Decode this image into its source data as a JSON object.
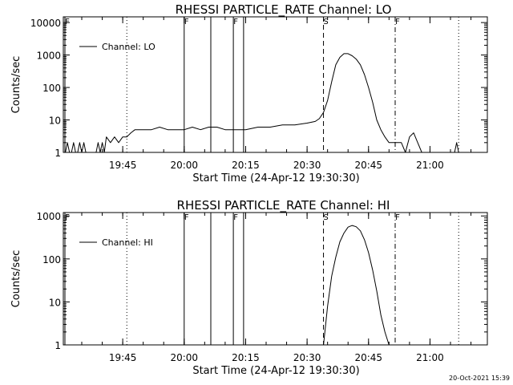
{
  "chart_data": [
    {
      "type": "line",
      "title": "RHESSI PARTICLE_RATE Channel: LO",
      "xlabel": "Start Time (24-Apr-12 19:30:30)",
      "ylabel": "Counts/sec",
      "y_scale": "log",
      "ylim": [
        1,
        15000
      ],
      "xlim": [
        "19:30:30",
        "21:14:00"
      ],
      "x_ticks": [
        "19:45",
        "20:00",
        "20:15",
        "20:30",
        "20:45",
        "21:00"
      ],
      "y_ticks": [
        "1",
        "10",
        "100",
        "1000",
        "10000"
      ],
      "legend": "Channel: LO",
      "legend_position": "top-left",
      "event_markers": [
        {
          "label": "F",
          "time": "19:30:30",
          "style": "solid"
        },
        {
          "label": "",
          "time": "19:46:00",
          "style": "dotted"
        },
        {
          "label": "F",
          "time": "20:00:00",
          "style": "solid"
        },
        {
          "label": "",
          "time": "20:06:30",
          "style": "solid"
        },
        {
          "label": "F",
          "time": "20:12:00",
          "style": "solid"
        },
        {
          "label": "",
          "time": "20:14:30",
          "style": "solid"
        },
        {
          "label": "S",
          "time": "20:34:00",
          "style": "dashed"
        },
        {
          "label": "F",
          "time": "20:51:30",
          "style": "dashdot"
        },
        {
          "label": "",
          "time": "21:07:00",
          "style": "dotted"
        }
      ],
      "series": [
        {
          "name": "Channel: LO",
          "x": [
            "19:31:00",
            "19:31:30",
            "19:32:00",
            "19:32:30",
            "19:33:00",
            "19:33:30",
            "19:34:00",
            "19:34:30",
            "19:35:00",
            "19:35:30",
            "19:36:00",
            "19:38:30",
            "19:39:00",
            "19:39:30",
            "19:40:00",
            "19:40:30",
            "19:41:00",
            "19:42:00",
            "19:43:00",
            "19:44:00",
            "19:45:00",
            "19:46:00",
            "19:47:00",
            "19:48:00",
            "19:50:00",
            "19:52:00",
            "19:54:00",
            "19:56:00",
            "19:58:00",
            "20:00:00",
            "20:02:00",
            "20:04:00",
            "20:06:00",
            "20:08:00",
            "20:10:00",
            "20:12:00",
            "20:15:00",
            "20:18:00",
            "20:21:00",
            "20:24:00",
            "20:27:00",
            "20:30:00",
            "20:32:00",
            "20:33:00",
            "20:34:00",
            "20:35:00",
            "20:36:00",
            "20:37:00",
            "20:38:00",
            "20:39:00",
            "20:40:00",
            "20:41:00",
            "20:42:00",
            "20:43:00",
            "20:44:00",
            "20:45:00",
            "20:46:00",
            "20:47:00",
            "20:48:00",
            "20:49:00",
            "20:50:00",
            "20:51:00",
            "20:52:00",
            "20:53:00",
            "20:54:00",
            "20:55:00",
            "20:56:00",
            "20:57:00",
            "20:58:00",
            "21:06:00",
            "21:06:30",
            "21:07:00"
          ],
          "y": [
            1,
            2,
            1,
            1,
            2,
            1,
            1,
            2,
            1,
            2,
            1,
            1,
            2,
            1,
            2,
            1,
            3,
            2,
            3,
            2,
            3,
            3,
            4,
            5,
            5,
            5,
            6,
            5,
            5,
            5,
            6,
            5,
            6,
            6,
            5,
            5,
            5,
            6,
            6,
            7,
            7,
            8,
            9,
            11,
            17,
            40,
            150,
            500,
            850,
            1100,
            1100,
            950,
            750,
            500,
            250,
            100,
            35,
            10,
            5,
            3,
            2,
            2,
            2,
            2,
            1,
            3,
            4,
            2,
            1,
            1,
            2,
            1
          ]
        }
      ]
    },
    {
      "type": "line",
      "title": "RHESSI PARTICLE_RATE Channel: HI",
      "xlabel": "Start Time (24-Apr-12 19:30:30)",
      "ylabel": "Counts/sec",
      "y_scale": "log",
      "ylim": [
        1,
        1200
      ],
      "xlim": [
        "19:30:30",
        "21:14:00"
      ],
      "x_ticks": [
        "19:45",
        "20:00",
        "20:15",
        "20:30",
        "20:45",
        "21:00"
      ],
      "y_ticks": [
        "1",
        "10",
        "100",
        "1000"
      ],
      "legend": "Channel: HI",
      "legend_position": "top-left",
      "event_markers": [
        {
          "label": "F",
          "time": "19:30:30",
          "style": "solid"
        },
        {
          "label": "",
          "time": "19:46:00",
          "style": "dotted"
        },
        {
          "label": "F",
          "time": "20:00:00",
          "style": "solid"
        },
        {
          "label": "",
          "time": "20:06:30",
          "style": "solid"
        },
        {
          "label": "F",
          "time": "20:12:00",
          "style": "solid"
        },
        {
          "label": "",
          "time": "20:14:30",
          "style": "solid"
        },
        {
          "label": "S",
          "time": "20:34:00",
          "style": "dashed"
        },
        {
          "label": "F",
          "time": "20:51:30",
          "style": "dashdot"
        },
        {
          "label": "",
          "time": "21:07:00",
          "style": "dotted"
        }
      ],
      "series": [
        {
          "name": "Channel: HI",
          "x": [
            "20:34:00",
            "20:35:00",
            "20:36:00",
            "20:37:00",
            "20:38:00",
            "20:39:00",
            "20:40:00",
            "20:41:00",
            "20:42:00",
            "20:43:00",
            "20:44:00",
            "20:45:00",
            "20:46:00",
            "20:47:00",
            "20:48:00",
            "20:49:00",
            "20:50:00"
          ],
          "y": [
            1,
            8,
            40,
            110,
            250,
            400,
            550,
            600,
            560,
            450,
            280,
            140,
            55,
            18,
            5,
            2,
            1
          ]
        }
      ]
    }
  ],
  "footer": {
    "timestamp": "20-Oct-2021 15:39"
  }
}
